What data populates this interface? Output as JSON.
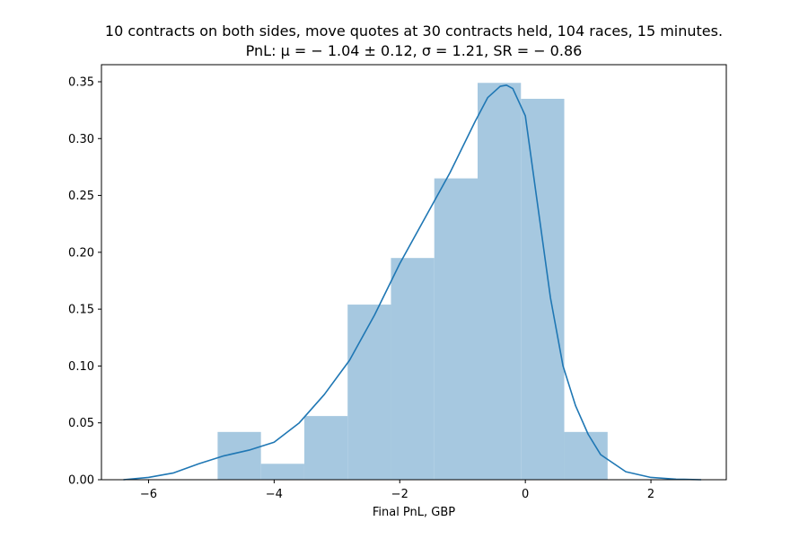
{
  "chart_data": {
    "type": "bar",
    "title_line1": "10 contracts on both sides, move quotes at 30 contracts held, 104 races, 15 minutes.",
    "title_line2": "PnL: μ = − 1.04 ± 0.12, σ = 1.21, SR = − 0.86",
    "xlabel": "Final PnL, GBP",
    "ylabel": "",
    "xlim": [
      -6.75,
      3.2
    ],
    "ylim": [
      0,
      0.365
    ],
    "x_ticks": [
      -6,
      -4,
      -2,
      0,
      2
    ],
    "x_tick_labels": [
      "−6",
      "−4",
      "−2",
      "0",
      "2"
    ],
    "y_ticks": [
      0.0,
      0.05,
      0.1,
      0.15,
      0.2,
      0.25,
      0.3,
      0.35
    ],
    "y_tick_labels": [
      "0.00",
      "0.05",
      "0.10",
      "0.15",
      "0.20",
      "0.25",
      "0.30",
      "0.35"
    ],
    "grid": false,
    "histogram": {
      "bin_edges": [
        -4.9,
        -4.21,
        -3.52,
        -2.83,
        -2.14,
        -1.45,
        -0.76,
        -0.07,
        0.62,
        1.31
      ],
      "density": [
        0.042,
        0.014,
        0.056,
        0.154,
        0.195,
        0.265,
        0.349,
        0.335,
        0.042
      ],
      "color": "#a6c8e0"
    },
    "kde": {
      "color": "#1f77b4",
      "x": [
        -6.4,
        -6.0,
        -5.6,
        -5.2,
        -4.8,
        -4.4,
        -4.0,
        -3.6,
        -3.2,
        -2.8,
        -2.4,
        -2.0,
        -1.6,
        -1.2,
        -0.8,
        -0.6,
        -0.4,
        -0.3,
        -0.2,
        0.0,
        0.2,
        0.4,
        0.6,
        0.8,
        1.0,
        1.2,
        1.6,
        2.0,
        2.4,
        2.8
      ],
      "y": [
        0.0,
        0.002,
        0.006,
        0.014,
        0.021,
        0.026,
        0.033,
        0.05,
        0.075,
        0.105,
        0.145,
        0.19,
        0.23,
        0.27,
        0.315,
        0.336,
        0.346,
        0.347,
        0.344,
        0.32,
        0.24,
        0.16,
        0.1,
        0.065,
        0.04,
        0.022,
        0.007,
        0.002,
        0.0005,
        0.0
      ]
    }
  }
}
